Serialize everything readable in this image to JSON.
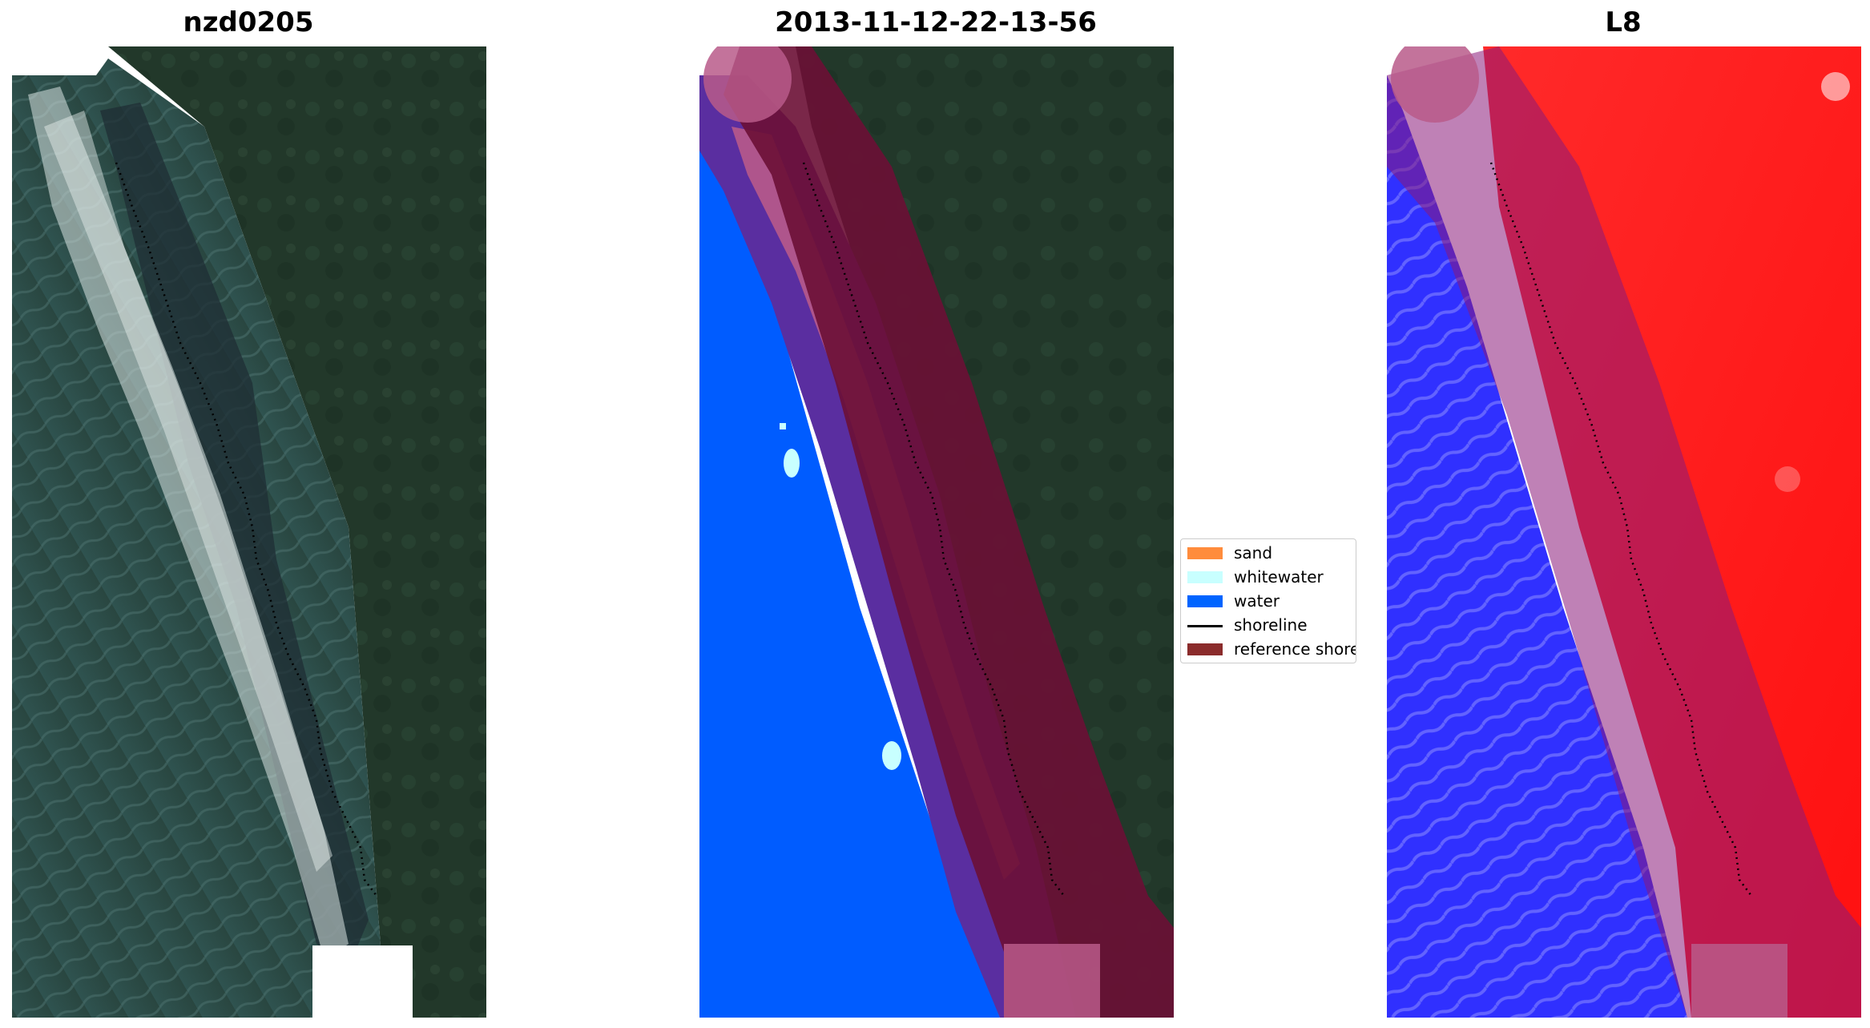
{
  "panels": [
    {
      "title": "nzd0205"
    },
    {
      "title": "2013-11-12-22-13-56"
    },
    {
      "title": "L8"
    }
  ],
  "legend": {
    "items": [
      {
        "label": "sand",
        "color": "#ff8c3c",
        "kind": "patch"
      },
      {
        "label": "whitewater",
        "color": "#c8ffff",
        "kind": "patch"
      },
      {
        "label": "water",
        "color": "#0064ff",
        "kind": "patch"
      },
      {
        "label": "shoreline",
        "color": "#000000",
        "kind": "line"
      },
      {
        "label": "reference shoreline",
        "color": "#8b2c2c",
        "kind": "patch"
      }
    ]
  },
  "colors": {
    "land_green": "#22382a",
    "sea_teal": "#2e4e4a",
    "water_blue": "#005cff",
    "buffer_maroon": "#6b0f35",
    "buffer_pink": "#b85a8a",
    "buffer_purple": "#5a2ea0",
    "land_red": "#ff1a1a",
    "sea_blue": "#2a2aff"
  }
}
